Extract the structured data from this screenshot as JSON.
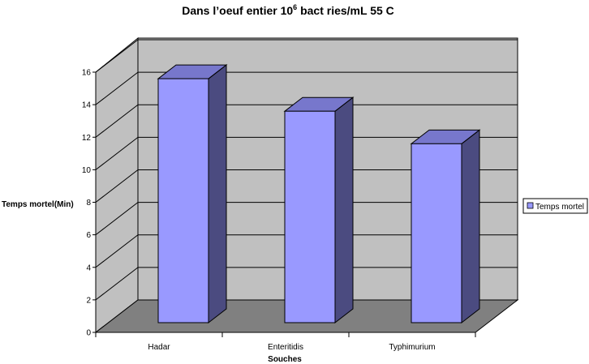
{
  "chart_data": {
    "type": "bar",
    "title_parts": {
      "before_sup": "Dans l’oeuf entier 10",
      "sup": "6",
      "after_sup": " bact  ries/mL 55  C"
    },
    "categories": [
      "Hadar",
      "Enteritidis",
      "Typhimurium"
    ],
    "series": [
      {
        "name": "Temps mortel",
        "values": [
          15,
          13,
          11
        ],
        "color": "#9999ff"
      }
    ],
    "xlabel": "Souches",
    "ylabel": "Temps mortel(Min)",
    "ylim": [
      0,
      16
    ],
    "yticks": [
      0,
      2,
      4,
      6,
      8,
      10,
      12,
      14,
      16
    ],
    "grid": true,
    "legend_position": "right",
    "colors": {
      "bar_front": "#9999ff",
      "bar_top": "#7777cc",
      "bar_side": "#4b4b80",
      "back_wall": "#c0c0c0",
      "side_wall": "#c0c0c0",
      "floor": "#808080"
    }
  }
}
